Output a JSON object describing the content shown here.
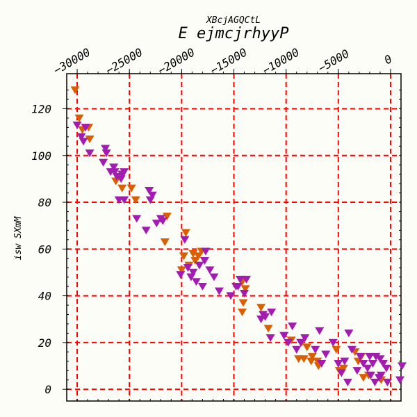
{
  "chart_data": {
    "type": "scatter",
    "title": "E ejmcjrhyyP",
    "subtitle": "XBcjAGQCtL",
    "xlabel": "",
    "ylabel": "isw SXmM",
    "x_ticks": [
      -30000,
      -25000,
      -20000,
      -15000,
      -10000,
      -5000,
      0
    ],
    "y_ticks": [
      0,
      20,
      40,
      60,
      80,
      100,
      120
    ],
    "xlim": [
      -31000,
      1000
    ],
    "ylim": [
      -5,
      135
    ],
    "grid": true,
    "grid_color": "#ff0000",
    "marker": "triangle-down",
    "series": [
      {
        "color": "#d95f02",
        "points": [
          [
            -30200,
            128
          ],
          [
            -29800,
            116
          ],
          [
            -29500,
            111
          ],
          [
            -28900,
            112
          ],
          [
            -28800,
            107
          ],
          [
            -26300,
            89
          ],
          [
            -25700,
            86
          ],
          [
            -24800,
            86
          ],
          [
            -24400,
            81
          ],
          [
            -21400,
            74
          ],
          [
            -21600,
            63
          ],
          [
            -20000,
            51
          ],
          [
            -19800,
            57
          ],
          [
            -19600,
            67
          ],
          [
            -19300,
            53
          ],
          [
            -18900,
            58
          ],
          [
            -18700,
            55
          ],
          [
            -18400,
            57
          ],
          [
            -18100,
            59
          ],
          [
            -14200,
            46
          ],
          [
            -14100,
            37
          ],
          [
            -14200,
            33
          ],
          [
            -13900,
            43
          ],
          [
            -12400,
            35
          ],
          [
            -11700,
            26
          ],
          [
            -9500,
            21
          ],
          [
            -8800,
            13
          ],
          [
            -8500,
            20
          ],
          [
            -8300,
            13
          ],
          [
            -8000,
            18
          ],
          [
            -7600,
            12
          ],
          [
            -7500,
            14
          ],
          [
            -7000,
            12
          ],
          [
            -6900,
            10
          ],
          [
            -5200,
            17
          ],
          [
            -4900,
            8
          ],
          [
            -4500,
            9
          ],
          [
            -3400,
            16
          ],
          [
            -3100,
            12
          ],
          [
            -2800,
            14
          ],
          [
            -2600,
            5
          ],
          [
            -2100,
            6
          ],
          [
            -900,
            4
          ],
          [
            -300,
            3
          ]
        ]
      },
      {
        "color": "#a21caf",
        "points": [
          [
            -30000,
            113
          ],
          [
            -29600,
            108
          ],
          [
            -29400,
            106
          ],
          [
            -29200,
            112
          ],
          [
            -28800,
            101
          ],
          [
            -27500,
            97
          ],
          [
            -27300,
            103
          ],
          [
            -27200,
            101
          ],
          [
            -26800,
            93
          ],
          [
            -26500,
            95
          ],
          [
            -26400,
            93
          ],
          [
            -26200,
            91
          ],
          [
            -25800,
            90
          ],
          [
            -25700,
            92
          ],
          [
            -25500,
            93
          ],
          [
            -26000,
            81
          ],
          [
            -25500,
            81
          ],
          [
            -24300,
            73
          ],
          [
            -23400,
            68
          ],
          [
            -23100,
            85
          ],
          [
            -23000,
            81
          ],
          [
            -22800,
            83
          ],
          [
            -22400,
            71
          ],
          [
            -22000,
            73
          ],
          [
            -21800,
            72
          ],
          [
            -20100,
            49
          ],
          [
            -19700,
            64
          ],
          [
            -19400,
            52
          ],
          [
            -19100,
            48
          ],
          [
            -18900,
            50
          ],
          [
            -18600,
            46
          ],
          [
            -18300,
            53
          ],
          [
            -18000,
            44
          ],
          [
            -17800,
            55
          ],
          [
            -17700,
            59
          ],
          [
            -17300,
            51
          ],
          [
            -16900,
            48
          ],
          [
            -16400,
            42
          ],
          [
            -15300,
            40
          ],
          [
            -14800,
            44
          ],
          [
            -14600,
            44
          ],
          [
            -14400,
            47
          ],
          [
            -14000,
            41
          ],
          [
            -13800,
            47
          ],
          [
            -12400,
            30
          ],
          [
            -12200,
            32
          ],
          [
            -12000,
            31
          ],
          [
            -11500,
            22
          ],
          [
            -11400,
            33
          ],
          [
            -10200,
            23
          ],
          [
            -9800,
            20
          ],
          [
            -9400,
            27
          ],
          [
            -9000,
            17
          ],
          [
            -8600,
            20
          ],
          [
            -8200,
            22
          ],
          [
            -7200,
            17
          ],
          [
            -6800,
            25
          ],
          [
            -6600,
            11
          ],
          [
            -6200,
            15
          ],
          [
            -5500,
            20
          ],
          [
            -5000,
            11
          ],
          [
            -4700,
            7
          ],
          [
            -4400,
            12
          ],
          [
            -4000,
            24
          ],
          [
            -3700,
            17
          ],
          [
            -3200,
            8
          ],
          [
            -2900,
            14
          ],
          [
            -2600,
            11
          ],
          [
            -2200,
            9
          ],
          [
            -2000,
            14
          ],
          [
            -1700,
            11
          ],
          [
            -1400,
            14
          ],
          [
            -1000,
            13
          ],
          [
            -700,
            11
          ],
          [
            -400,
            9
          ],
          [
            -300,
            3
          ],
          [
            -1100,
            5
          ],
          [
            -1500,
            3
          ],
          [
            1100,
            10
          ],
          [
            900,
            4
          ],
          [
            -4100,
            3
          ],
          [
            -1900,
            6
          ],
          [
            -900,
            6
          ]
        ]
      }
    ]
  }
}
